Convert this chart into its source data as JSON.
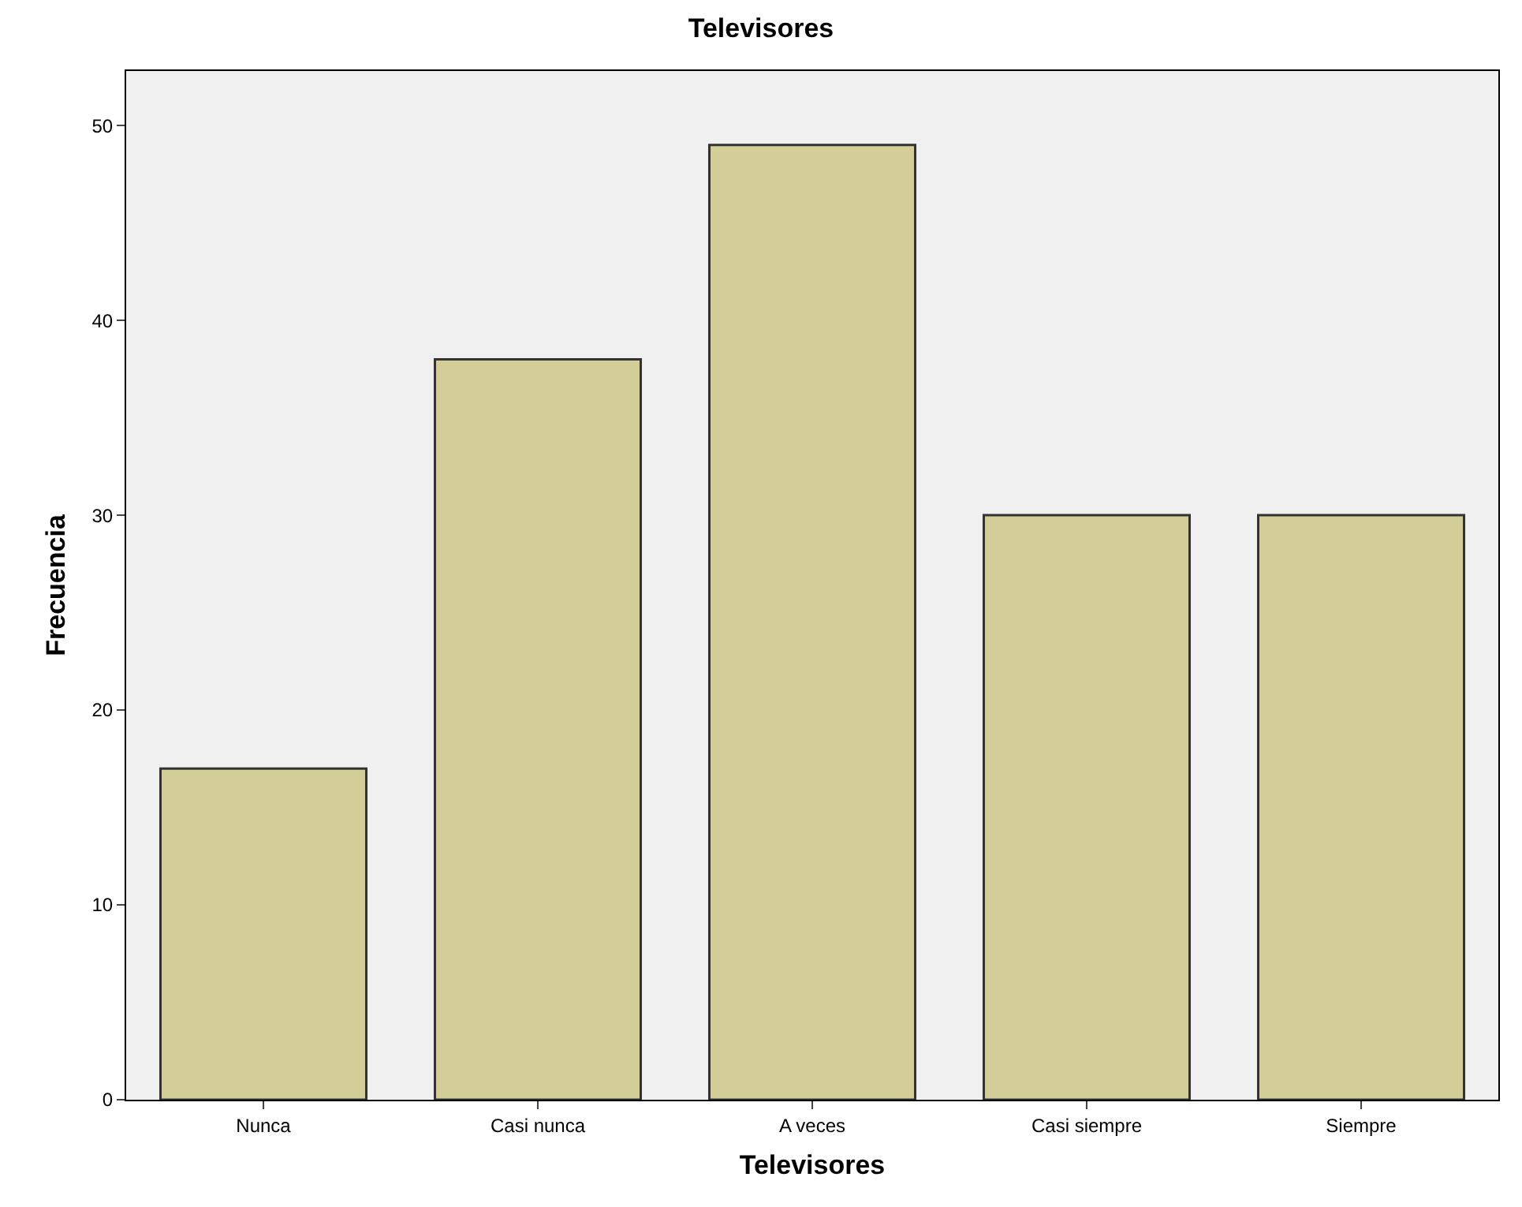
{
  "chart_data": {
    "type": "bar",
    "title": "Televisores",
    "xlabel": "Televisores",
    "ylabel": "Frecuencia",
    "categories": [
      "Nunca",
      "Casi nunca",
      "A veces",
      "Casi siempre",
      "Siempre"
    ],
    "values": [
      17,
      38,
      49,
      30,
      30
    ],
    "color": "#d3ce97",
    "ylim": [
      0,
      52.8
    ],
    "yticks": [
      0,
      10,
      20,
      30,
      40,
      50
    ],
    "grid": false
  }
}
